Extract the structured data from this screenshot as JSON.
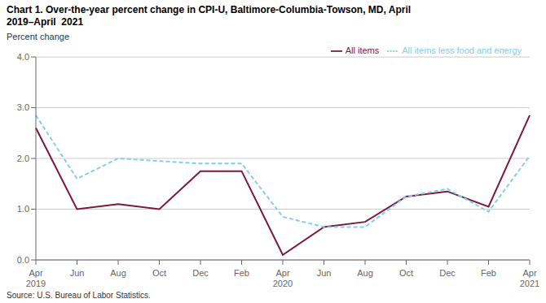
{
  "chart_data": {
    "type": "line",
    "title": "Chart 1. Over-the-year percent change in CPI-U, Baltimore-Columbia-Towson, MD, April\n2019–April  2021",
    "y_label": "Percent change",
    "annotations": [
      "Source: U.S. Bureau of Labor Statistics."
    ],
    "categories": [
      "Apr\n2019",
      "Jun",
      "Aug",
      "Oct",
      "Dec",
      "Feb",
      "Apr\n2020",
      "Jun",
      "Aug",
      "Oct",
      "Dec",
      "Feb",
      "Apr\n2021"
    ],
    "series": [
      {
        "name": "All items",
        "color": "#7B1840",
        "line_style": "solid",
        "values": [
          2.6,
          1.0,
          1.1,
          1.0,
          1.75,
          1.75,
          0.1,
          0.65,
          0.75,
          1.25,
          1.35,
          1.05,
          2.85
        ]
      },
      {
        "name": "All items less food and energy",
        "color": "#87CEEB",
        "line_style": "dashed",
        "values": [
          2.85,
          1.6,
          2.0,
          1.95,
          1.9,
          1.9,
          0.85,
          0.65,
          0.65,
          1.25,
          1.4,
          0.95,
          2.05
        ]
      }
    ],
    "ylim": [
      0.0,
      4.0
    ],
    "yticks": [
      {
        "value": 0.0,
        "label": "0.0"
      },
      {
        "value": 1.0,
        "label": "1.0"
      },
      {
        "value": 2.0,
        "label": "2.0"
      },
      {
        "value": 3.0,
        "label": "3.0"
      },
      {
        "value": 4.0,
        "label": "4.0"
      }
    ],
    "grid": true,
    "legend": "upper right"
  }
}
